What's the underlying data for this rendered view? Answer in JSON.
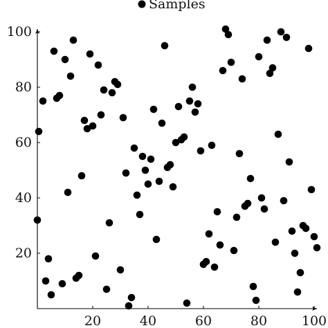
{
  "chart_data": {
    "type": "scatter",
    "title": "",
    "xlabel": "",
    "ylabel": "",
    "xlim": [
      0,
      100
    ],
    "ylim": [
      0,
      100
    ],
    "x_ticks": [
      20,
      40,
      60,
      80,
      100
    ],
    "y_ticks": [
      20,
      40,
      60,
      80,
      100
    ],
    "x_tick_labels": [
      "20",
      "40",
      "60",
      "80",
      "100"
    ],
    "y_tick_labels": [
      "20",
      "40",
      "60",
      "80",
      "100"
    ],
    "grid": false,
    "legend_position": "top-center",
    "series": [
      {
        "name": "Samples",
        "color": "#000000",
        "marker": "filled-circle",
        "points": [
          [
            0,
            32
          ],
          [
            0.5,
            64
          ],
          [
            2,
            75
          ],
          [
            3,
            10
          ],
          [
            4,
            18
          ],
          [
            5,
            5
          ],
          [
            6,
            93
          ],
          [
            7,
            76
          ],
          [
            8,
            77
          ],
          [
            9,
            9
          ],
          [
            10,
            90
          ],
          [
            11,
            42
          ],
          [
            12,
            84
          ],
          [
            13,
            97
          ],
          [
            14,
            11
          ],
          [
            15,
            12
          ],
          [
            16,
            48
          ],
          [
            17,
            68
          ],
          [
            18,
            65
          ],
          [
            19,
            92
          ],
          [
            20,
            66
          ],
          [
            21,
            19
          ],
          [
            22,
            88
          ],
          [
            23,
            70
          ],
          [
            24,
            79
          ],
          [
            25,
            7
          ],
          [
            26,
            31
          ],
          [
            27,
            78
          ],
          [
            28,
            82
          ],
          [
            29,
            81
          ],
          [
            30,
            14
          ],
          [
            31,
            69
          ],
          [
            32,
            49
          ],
          [
            33,
            1
          ],
          [
            34,
            4
          ],
          [
            35,
            58
          ],
          [
            36,
            41
          ],
          [
            37,
            34
          ],
          [
            38,
            55
          ],
          [
            39,
            50
          ],
          [
            40,
            45
          ],
          [
            41,
            54
          ],
          [
            42,
            72
          ],
          [
            43,
            25
          ],
          [
            44,
            46
          ],
          [
            45,
            67
          ],
          [
            46,
            95
          ],
          [
            47,
            51
          ],
          [
            48,
            52
          ],
          [
            49,
            44
          ],
          [
            50,
            60
          ],
          [
            51,
            73
          ],
          [
            52,
            61
          ],
          [
            53,
            62
          ],
          [
            54,
            2
          ],
          [
            55,
            75
          ],
          [
            56,
            80
          ],
          [
            57,
            71
          ],
          [
            58,
            74
          ],
          [
            59,
            57
          ],
          [
            60,
            16
          ],
          [
            61,
            17
          ],
          [
            62,
            27
          ],
          [
            63,
            59
          ],
          [
            64,
            15
          ],
          [
            65,
            35
          ],
          [
            66,
            23
          ],
          [
            67,
            86
          ],
          [
            68,
            101
          ],
          [
            69,
            99
          ],
          [
            70,
            89
          ],
          [
            71,
            21
          ],
          [
            72,
            33
          ],
          [
            73,
            56
          ],
          [
            74,
            83
          ],
          [
            75,
            37
          ],
          [
            76,
            38
          ],
          [
            77,
            47
          ],
          [
            78,
            8
          ],
          [
            79,
            3
          ],
          [
            80,
            91
          ],
          [
            81,
            40
          ],
          [
            82,
            36
          ],
          [
            83,
            97
          ],
          [
            84,
            85
          ],
          [
            85,
            87
          ],
          [
            86,
            24
          ],
          [
            87,
            63
          ],
          [
            88,
            100
          ],
          [
            89,
            39
          ],
          [
            90,
            98
          ],
          [
            91,
            53
          ],
          [
            92,
            28
          ],
          [
            93,
            20
          ],
          [
            94,
            6
          ],
          [
            95,
            13
          ],
          [
            96,
            30
          ],
          [
            97,
            29
          ],
          [
            98,
            94
          ],
          [
            99,
            43
          ],
          [
            100,
            26
          ],
          [
            101,
            22
          ]
        ]
      }
    ]
  }
}
